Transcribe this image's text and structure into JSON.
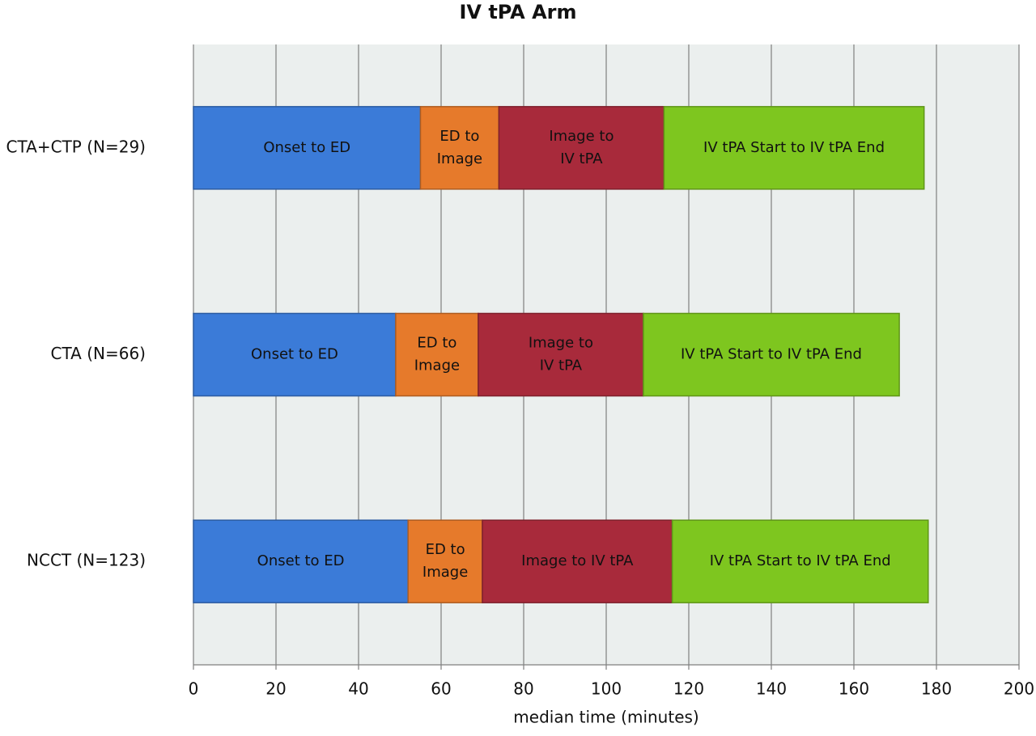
{
  "chart_data": {
    "type": "stacked-barh",
    "title": "IV tPA Arm",
    "x_label": "median time (minutes)",
    "categories": [
      "CTA+CTP (N=29)",
      "CTA (N=66)",
      "NCCT (N=123)"
    ],
    "series": [
      {
        "name": "Onset to ED",
        "color": "#3b7bd8",
        "values": [
          55,
          49,
          52
        ]
      },
      {
        "name": "ED to Image",
        "color": "#e67a2b",
        "values": [
          19,
          20,
          18
        ]
      },
      {
        "name": "Image to IV tPA",
        "color": "#a82a3b",
        "values": [
          40,
          40,
          46
        ]
      },
      {
        "name": "IV tPA Start to IV tPA End",
        "color": "#7ec61f",
        "values": [
          63,
          62,
          62
        ]
      }
    ],
    "xlim": [
      0,
      200
    ],
    "xticks": [
      0,
      20,
      40,
      60,
      80,
      100,
      120,
      140,
      160,
      180,
      200
    ],
    "grid": true
  }
}
